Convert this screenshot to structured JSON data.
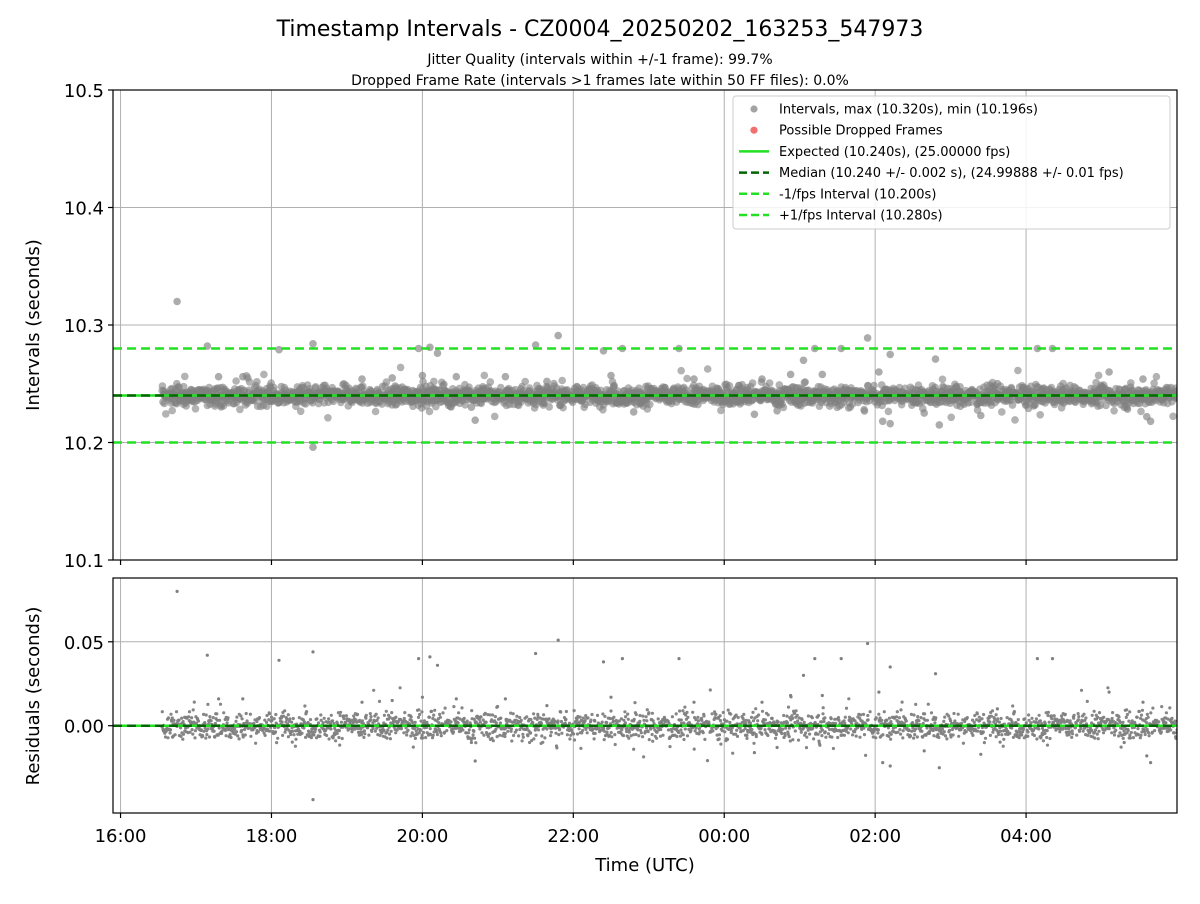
{
  "title": "Timestamp Intervals - CZ0004_20250202_163253_547973",
  "subtitle_lines": [
    "Jitter Quality (intervals within +/-1 frame): 99.7%",
    "Dropped Frame Rate (intervals >1 frames late within 50 FF files): 0.0%"
  ],
  "colors": {
    "points": "#808080",
    "dropped": "#f06060",
    "expected": "#22e022",
    "median": "#006400",
    "band": "#22e022",
    "grid": "#b0b0b0",
    "axes": "#000000"
  },
  "chart_data": [
    {
      "type": "scatter",
      "panel": "intervals",
      "ylabel": "Intervals (seconds)",
      "ylim": [
        10.1,
        10.5
      ],
      "yticks": [
        10.1,
        10.2,
        10.3,
        10.4,
        10.5
      ],
      "ytick_labels": [
        "10.1",
        "10.2",
        "10.3",
        "10.4",
        "10.5"
      ],
      "xlim_hours": [
        15.9,
        30.0
      ],
      "xticks_hours": [
        16,
        18,
        20,
        22,
        24,
        26,
        28
      ],
      "grid": true,
      "legend_position": "top-right",
      "legend": [
        {
          "kind": "point",
          "label": "Intervals, max (10.320s), min (10.196s)",
          "color": "#999999"
        },
        {
          "kind": "point",
          "label": "Possible Dropped Frames",
          "color": "#f06060"
        },
        {
          "kind": "solid",
          "label": "Expected (10.240s), (25.00000 fps)",
          "color": "#22e022"
        },
        {
          "kind": "dashed",
          "label": "Median (10.240 +/- 0.002 s), (24.99888 +/- 0.01 fps)",
          "color": "#006400"
        },
        {
          "kind": "dashed",
          "label": "-1/fps Interval (10.200s)",
          "color": "#22e022"
        },
        {
          "kind": "dashed",
          "label": "+1/fps Interval (10.280s)",
          "color": "#22e022"
        }
      ],
      "lines": {
        "expected": 10.24,
        "median": 10.24,
        "minus_band": 10.2,
        "plus_band": 10.28
      },
      "data_range_hours": [
        16.55,
        30.0
      ],
      "baseline": 10.24,
      "spread": 0.004,
      "outliers": [
        [
          16.75,
          10.32
        ],
        [
          17.15,
          10.282
        ],
        [
          17.3,
          10.256
        ],
        [
          17.62,
          10.256
        ],
        [
          18.1,
          10.279
        ],
        [
          18.55,
          10.284
        ],
        [
          18.55,
          10.196
        ],
        [
          19.2,
          10.254
        ],
        [
          19.6,
          10.255
        ],
        [
          19.95,
          10.28
        ],
        [
          20.0,
          10.257
        ],
        [
          20.1,
          10.281
        ],
        [
          20.2,
          10.276
        ],
        [
          20.45,
          10.256
        ],
        [
          20.65,
          10.23
        ],
        [
          20.7,
          10.219
        ],
        [
          21.1,
          10.256
        ],
        [
          21.5,
          10.283
        ],
        [
          21.65,
          10.252
        ],
        [
          21.8,
          10.291
        ],
        [
          22.4,
          10.278
        ],
        [
          22.5,
          10.257
        ],
        [
          22.65,
          10.28
        ],
        [
          22.8,
          10.226
        ],
        [
          23.4,
          10.28
        ],
        [
          23.6,
          10.254
        ],
        [
          24.4,
          10.224
        ],
        [
          24.5,
          10.254
        ],
        [
          24.7,
          10.227
        ],
        [
          24.88,
          10.258
        ],
        [
          25.05,
          10.27
        ],
        [
          25.2,
          10.28
        ],
        [
          25.3,
          10.258
        ],
        [
          25.55,
          10.28
        ],
        [
          25.9,
          10.289
        ],
        [
          26.05,
          10.26
        ],
        [
          26.1,
          10.218
        ],
        [
          26.2,
          10.216
        ],
        [
          26.2,
          10.275
        ],
        [
          26.65,
          10.225
        ],
        [
          26.8,
          10.271
        ],
        [
          26.85,
          10.215
        ],
        [
          27.0,
          10.243
        ],
        [
          27.4,
          10.223
        ],
        [
          27.62,
          10.25
        ],
        [
          28.15,
          10.28
        ],
        [
          28.35,
          10.28
        ],
        [
          29.1,
          10.26
        ],
        [
          29.3,
          10.23
        ],
        [
          29.55,
          10.254
        ],
        [
          29.6,
          10.222
        ],
        [
          29.65,
          10.218
        ]
      ]
    },
    {
      "type": "scatter",
      "panel": "residuals",
      "xlabel": "Time (UTC)",
      "ylabel": "Residuals (seconds)",
      "ylim": [
        -0.052,
        0.088
      ],
      "yticks": [
        0.0,
        0.05
      ],
      "ytick_labels": [
        "0.00",
        "0.05"
      ],
      "xlim_hours": [
        15.9,
        30.0
      ],
      "xticks_hours": [
        16,
        18,
        20,
        22,
        24,
        26,
        28
      ],
      "xtick_labels": [
        "16:00",
        "18:00",
        "20:00",
        "22:00",
        "00:00",
        "02:00",
        "04:00"
      ],
      "grid": true,
      "zero_line": 0.0,
      "data_range_hours": [
        16.55,
        30.0
      ],
      "baseline": 0.0,
      "spread": 0.004,
      "outliers": [
        [
          16.75,
          0.08
        ],
        [
          17.15,
          0.042
        ],
        [
          17.3,
          0.016
        ],
        [
          17.62,
          0.016
        ],
        [
          18.1,
          0.039
        ],
        [
          18.55,
          0.044
        ],
        [
          18.55,
          -0.044
        ],
        [
          19.2,
          0.014
        ],
        [
          19.6,
          0.015
        ],
        [
          19.95,
          0.04
        ],
        [
          20.0,
          0.017
        ],
        [
          20.1,
          0.041
        ],
        [
          20.2,
          0.036
        ],
        [
          20.45,
          0.016
        ],
        [
          20.65,
          -0.01
        ],
        [
          20.7,
          -0.021
        ],
        [
          21.1,
          0.016
        ],
        [
          21.5,
          0.043
        ],
        [
          21.65,
          0.012
        ],
        [
          21.8,
          0.051
        ],
        [
          22.4,
          0.038
        ],
        [
          22.5,
          0.017
        ],
        [
          22.65,
          0.04
        ],
        [
          22.8,
          -0.014
        ],
        [
          23.4,
          0.04
        ],
        [
          23.6,
          0.014
        ],
        [
          24.4,
          -0.016
        ],
        [
          24.5,
          0.014
        ],
        [
          24.7,
          -0.013
        ],
        [
          24.88,
          0.018
        ],
        [
          25.05,
          0.03
        ],
        [
          25.2,
          0.04
        ],
        [
          25.3,
          0.018
        ],
        [
          25.55,
          0.04
        ],
        [
          25.9,
          0.049
        ],
        [
          26.05,
          0.02
        ],
        [
          26.1,
          -0.022
        ],
        [
          26.2,
          -0.024
        ],
        [
          26.2,
          0.035
        ],
        [
          26.65,
          -0.015
        ],
        [
          26.8,
          0.031
        ],
        [
          26.85,
          -0.025
        ],
        [
          27.0,
          0.003
        ],
        [
          27.4,
          -0.017
        ],
        [
          27.62,
          0.01
        ],
        [
          28.15,
          0.04
        ],
        [
          28.35,
          0.04
        ],
        [
          29.1,
          0.02
        ],
        [
          29.3,
          -0.01
        ],
        [
          29.55,
          0.014
        ],
        [
          29.6,
          -0.018
        ],
        [
          29.65,
          -0.022
        ]
      ]
    }
  ]
}
